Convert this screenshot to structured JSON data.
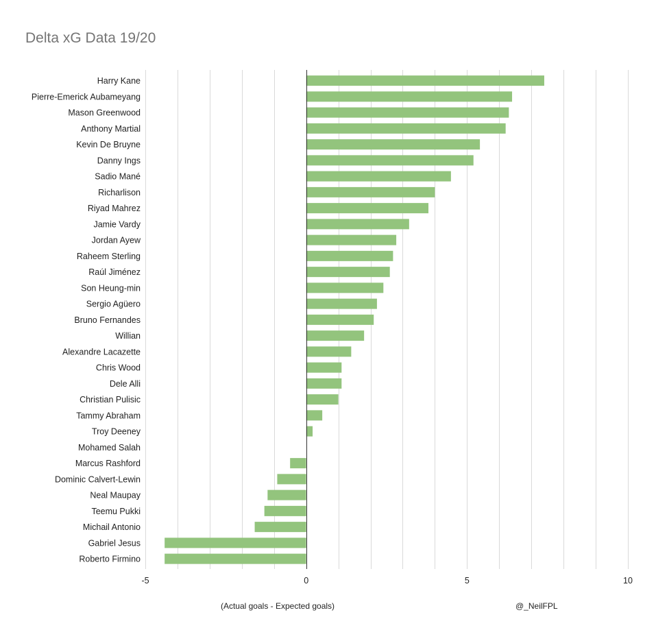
{
  "chart_data": {
    "type": "bar",
    "orientation": "horizontal",
    "title": "Delta xG Data 19/20",
    "xlabel": "(Actual goals - Expected goals)",
    "credit": "@_NeilFPL",
    "xlim": [
      -5,
      10
    ],
    "xticks": [
      -5,
      0,
      5,
      10
    ],
    "grid": true,
    "bar_color": "#93c47d",
    "categories": [
      "Harry Kane",
      "Pierre-Emerick Aubameyang",
      "Mason Greenwood",
      "Anthony Martial",
      "Kevin De Bruyne",
      "Danny Ings",
      "Sadio Mané",
      "Richarlison",
      "Riyad Mahrez",
      "Jamie Vardy",
      "Jordan Ayew",
      "Raheem Sterling",
      "Raúl Jiménez",
      "Son Heung-min",
      "Sergio Agüero",
      "Bruno Fernandes",
      "Willian",
      "Alexandre Lacazette",
      "Chris Wood",
      "Dele Alli",
      "Christian Pulisic",
      "Tammy Abraham",
      "Troy Deeney",
      "Mohamed Salah",
      "Marcus Rashford",
      "Dominic Calvert-Lewin",
      "Neal Maupay",
      "Teemu Pukki",
      "Michail Antonio",
      "Gabriel Jesus",
      "Roberto Firmino"
    ],
    "values": [
      7.4,
      6.4,
      6.3,
      6.2,
      5.4,
      5.2,
      4.5,
      4.0,
      3.8,
      3.2,
      2.8,
      2.7,
      2.6,
      2.4,
      2.2,
      2.1,
      1.8,
      1.4,
      1.1,
      1.1,
      1.0,
      0.5,
      0.2,
      0.0,
      -0.5,
      -0.9,
      -1.2,
      -1.3,
      -1.6,
      -4.4,
      -4.4
    ]
  }
}
